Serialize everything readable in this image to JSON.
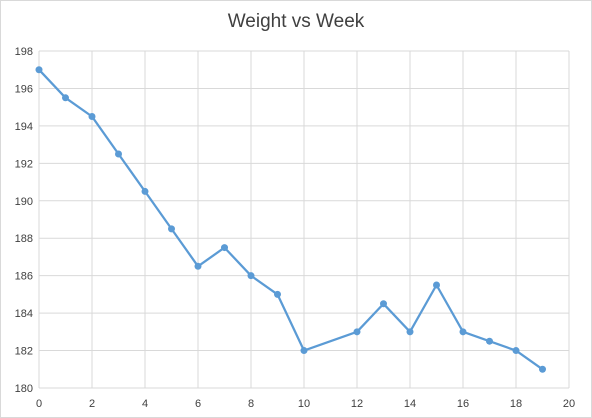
{
  "chart_data": {
    "type": "line",
    "title": "Weight vs Week",
    "xlabel": "",
    "ylabel": "",
    "xlim": [
      0,
      20
    ],
    "ylim": [
      180,
      198
    ],
    "x_ticks": [
      0,
      2,
      4,
      6,
      8,
      10,
      12,
      14,
      16,
      18,
      20
    ],
    "y_ticks": [
      180,
      182,
      184,
      186,
      188,
      190,
      192,
      194,
      196,
      198
    ],
    "grid": true,
    "legend": "none",
    "series_color": "#5b9bd5",
    "series": [
      {
        "x": [
          0,
          1,
          2,
          3,
          4,
          5,
          6,
          7,
          8,
          9,
          10,
          12,
          13,
          14,
          15,
          16,
          17,
          18,
          19
        ],
        "y": [
          197,
          195.5,
          194.5,
          192.5,
          190.5,
          188.5,
          186.5,
          187.5,
          186,
          185,
          182,
          183,
          184.5,
          183,
          185.5,
          183,
          182.5,
          182,
          181
        ]
      }
    ]
  }
}
